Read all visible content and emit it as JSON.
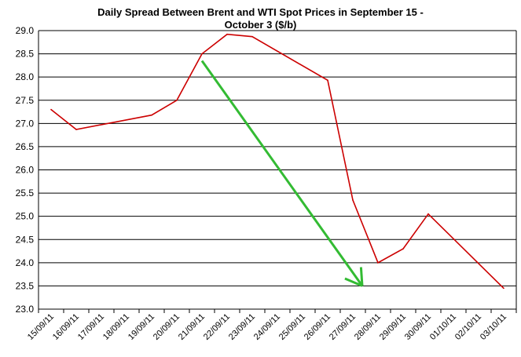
{
  "chart_data": {
    "type": "line",
    "title_line1": "Daily Spread Between Brent and WTI Spot Prices in September 15 -",
    "title_line2": "October 3  ($/b)",
    "xlabel": "",
    "ylabel": "",
    "ylim": [
      23.0,
      29.0
    ],
    "yticks": [
      "23.0",
      "23.5",
      "24.0",
      "24.5",
      "25.0",
      "25.5",
      "26.0",
      "26.5",
      "27.0",
      "27.5",
      "28.0",
      "28.5",
      "29.0"
    ],
    "xticks": [
      "15/09/11",
      "16/09/11",
      "17/09/11",
      "18/09/11",
      "19/09/11",
      "20/09/11",
      "21/09/11",
      "22/09/11",
      "23/09/11",
      "24/09/11",
      "25/09/11",
      "26/09/11",
      "27/09/11",
      "28/09/11",
      "29/09/11",
      "30/09/11",
      "01/10/11",
      "02/10/11",
      "03/10/11"
    ],
    "grid": true,
    "series": [
      {
        "color": "#cc0000",
        "points": [
          {
            "x": "15/09/11",
            "y": 27.3
          },
          {
            "x": "16/09/11",
            "y": 26.87
          },
          {
            "x": "19/09/11",
            "y": 27.18
          },
          {
            "x": "20/09/11",
            "y": 27.5
          },
          {
            "x": "21/09/11",
            "y": 28.5
          },
          {
            "x": "22/09/11",
            "y": 28.92
          },
          {
            "x": "23/09/11",
            "y": 28.87
          },
          {
            "x": "26/09/11",
            "y": 27.93
          },
          {
            "x": "27/09/11",
            "y": 25.35
          },
          {
            "x": "28/09/11",
            "y": 24.0
          },
          {
            "x": "29/09/11",
            "y": 24.3
          },
          {
            "x": "30/09/11",
            "y": 25.05
          },
          {
            "x": "03/10/11",
            "y": 23.45
          }
        ]
      }
    ],
    "annotation": {
      "type": "arrow",
      "color": "#33bb33",
      "from": {
        "x": "21/09/11",
        "y": 28.35
      },
      "to": {
        "x": "27/09/11",
        "y": 23.5
      }
    }
  }
}
